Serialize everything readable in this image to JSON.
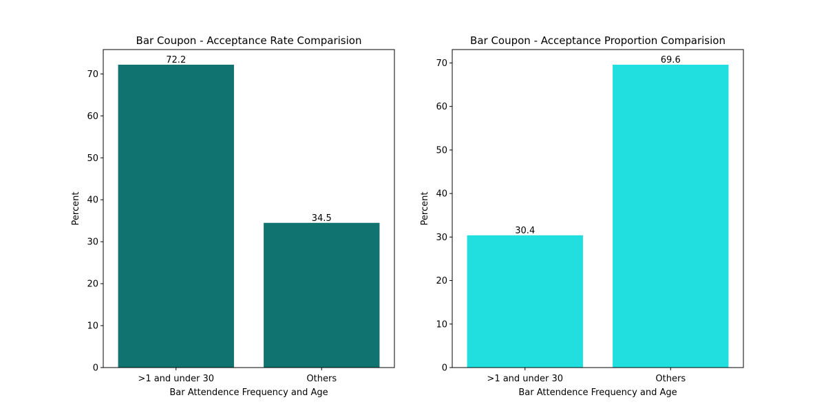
{
  "chart_data": [
    {
      "type": "bar",
      "title": "Bar Coupon - Acceptance Rate Comparision",
      "xlabel": "Bar Attendence Frequency and Age",
      "ylabel": "Percent",
      "categories": [
        ">1 and under 30",
        "Others"
      ],
      "values": [
        72.2,
        34.5
      ],
      "data_labels": [
        "72.2",
        "34.5"
      ],
      "ylim": [
        0,
        75.81
      ],
      "yticks": [
        0,
        10,
        20,
        30,
        40,
        50,
        60,
        70
      ],
      "color": "#117370",
      "grid": false,
      "legend": "none"
    },
    {
      "type": "bar",
      "title": "Bar Coupon - Acceptance Proportion Comparision",
      "xlabel": "Bar Attendence Frequency and Age",
      "ylabel": "Percent",
      "categories": [
        ">1 and under 30",
        "Others"
      ],
      "values": [
        30.4,
        69.6
      ],
      "data_labels": [
        "30.4",
        "69.6"
      ],
      "ylim": [
        0,
        73.08
      ],
      "yticks": [
        0,
        10,
        20,
        30,
        40,
        50,
        60,
        70
      ],
      "color": "#21dfdf",
      "grid": false,
      "legend": "none"
    }
  ]
}
